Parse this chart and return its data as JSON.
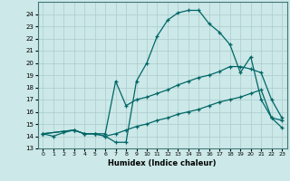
{
  "xlabel": "Humidex (Indice chaleur)",
  "xlim": [
    -0.5,
    23.5
  ],
  "ylim": [
    13,
    25
  ],
  "yticks": [
    13,
    14,
    15,
    16,
    17,
    18,
    19,
    20,
    21,
    22,
    23,
    24
  ],
  "xticks": [
    0,
    1,
    2,
    3,
    4,
    5,
    6,
    7,
    8,
    9,
    10,
    11,
    12,
    13,
    14,
    15,
    16,
    17,
    18,
    19,
    20,
    21,
    22,
    23
  ],
  "background_color": "#cce8e8",
  "grid_color": "#aacccc",
  "line_color": "#006666",
  "line1_x": [
    0,
    1,
    2,
    3,
    4,
    5,
    6,
    7,
    8,
    9,
    10,
    11,
    12,
    13,
    14,
    15,
    16,
    17,
    18,
    19,
    20,
    21,
    22,
    23
  ],
  "line1_y": [
    14.2,
    14.0,
    14.3,
    14.5,
    14.2,
    14.2,
    14.0,
    13.5,
    13.5,
    18.5,
    20.0,
    22.2,
    23.5,
    24.1,
    24.3,
    24.3,
    23.2,
    22.5,
    21.5,
    19.2,
    20.5,
    17.0,
    15.5,
    14.7
  ],
  "line2_x": [
    0,
    3,
    4,
    5,
    6,
    7,
    8,
    9,
    10,
    11,
    12,
    13,
    14,
    15,
    16,
    17,
    18,
    19,
    20,
    21,
    22,
    23
  ],
  "line2_y": [
    14.2,
    14.5,
    14.2,
    14.2,
    14.2,
    18.5,
    16.5,
    17.0,
    17.2,
    17.5,
    17.8,
    18.2,
    18.5,
    18.8,
    19.0,
    19.3,
    19.7,
    19.7,
    19.5,
    19.2,
    17.0,
    15.5
  ],
  "line3_x": [
    0,
    3,
    4,
    5,
    6,
    7,
    8,
    9,
    10,
    11,
    12,
    13,
    14,
    15,
    16,
    17,
    18,
    19,
    20,
    21,
    22,
    23
  ],
  "line3_y": [
    14.2,
    14.5,
    14.2,
    14.2,
    14.0,
    14.2,
    14.5,
    14.8,
    15.0,
    15.3,
    15.5,
    15.8,
    16.0,
    16.2,
    16.5,
    16.8,
    17.0,
    17.2,
    17.5,
    17.8,
    15.5,
    15.3
  ]
}
